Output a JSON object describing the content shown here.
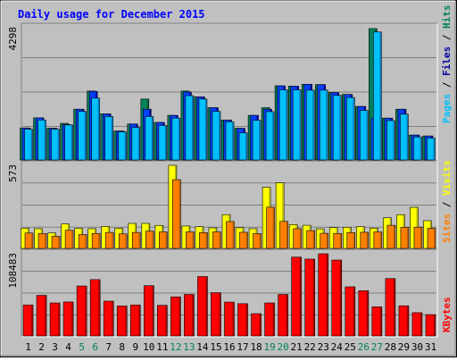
{
  "title": "Daily usage for December 2015",
  "colors": {
    "background": "#c0c0c0",
    "hits": "#006633",
    "hits_face": "#00805c",
    "files": "#0000a0",
    "files_face": "#0040ff",
    "pages": "#00c0ff",
    "pages_face": "#00e0ff",
    "visits": "#ffff00",
    "visits_face": "#ffff80",
    "sites": "#ff8000",
    "sites_face": "#ffa040",
    "kbytes": "#ff0000",
    "kbytes_face": "#ff4040",
    "title": "#0000ff",
    "weekend_label": "#00805c",
    "weekday_label": "#000000"
  },
  "legend_top": [
    "Pages",
    "Files",
    "Hits"
  ],
  "legend_mid": [
    "Sites",
    "Visits"
  ],
  "legend_bottom": [
    "KBytes"
  ],
  "chart_data": {
    "type": "bar",
    "categories": [
      "1",
      "2",
      "3",
      "4",
      "5",
      "6",
      "7",
      "8",
      "9",
      "10",
      "11",
      "12",
      "13",
      "14",
      "15",
      "16",
      "17",
      "18",
      "19",
      "20",
      "21",
      "22",
      "23",
      "24",
      "25",
      "26",
      "27",
      "28",
      "29",
      "30",
      "31"
    ],
    "weekend_days": [
      "5",
      "6",
      "12",
      "13",
      "19",
      "20",
      "26",
      "27"
    ],
    "panels": [
      {
        "name": "hits-files-pages",
        "ymax_label": "4298",
        "ymax": 4298,
        "series": [
          {
            "name": "Hits",
            "values": [
              1010,
              1340,
              1000,
              1160,
              1620,
              2210,
              1470,
              910,
              1140,
              1950,
              1190,
              1420,
              2210,
              2020,
              1670,
              1270,
              1000,
              1420,
              1670,
              2380,
              2370,
              2430,
              2420,
              2160,
              2100,
              1710,
              4240,
              1330,
              1620,
              780,
              750
            ]
          },
          {
            "name": "Files",
            "values": [
              1010,
              1340,
              1000,
              1120,
              1620,
              2200,
              1470,
              910,
              1140,
              1620,
              1190,
              1420,
              2180,
              2020,
              1670,
              1270,
              1000,
              1420,
              1620,
              2380,
              2370,
              2430,
              2420,
              2160,
              2100,
              1710,
              1330,
              1330,
              1620,
              780,
              750
            ]
          },
          {
            "name": "Pages",
            "values": [
              970,
              1270,
              970,
              1110,
              1550,
              1980,
              1380,
              880,
              1030,
              1380,
              1090,
              1330,
              2060,
              1950,
              1550,
              1210,
              850,
              1260,
              1540,
              2250,
              2250,
              2240,
              2240,
              2070,
              2000,
              1580,
              4130,
              1250,
              1460,
              720,
              680
            ]
          }
        ]
      },
      {
        "name": "visits-sites",
        "ymax_label": "573",
        "ymax": 573,
        "series": [
          {
            "name": "Visits",
            "values": [
              135,
              131,
              101,
              164,
              134,
              131,
              147,
              134,
              168,
              168,
              154,
              573,
              150,
              145,
              137,
              229,
              138,
              131,
              420,
              451,
              160,
              155,
              130,
              139,
              141,
              145,
              135,
              207,
              229,
              280,
              187
            ]
          },
          {
            "name": "Sites",
            "values": [
              101,
              98,
              78,
              120,
              90,
              98,
              105,
              95,
              105,
              114,
              109,
              473,
              109,
              104,
              109,
              181,
              106,
              97,
              281,
              182,
              131,
              118,
              99,
              98,
              104,
              106,
              109,
              155,
              141,
              142,
              134
            ]
          }
        ]
      },
      {
        "name": "kbytes",
        "ymax_label": "108483",
        "ymax": 108483,
        "series": [
          {
            "name": "KBytes",
            "values": [
              40200,
              53000,
              42900,
              44200,
              65500,
              74000,
              45300,
              38800,
              40200,
              66000,
              39700,
              51000,
              54200,
              78100,
              56500,
              44000,
              41900,
              28600,
              42900,
              54200,
              104000,
              101400,
              108483,
              100100,
              64400,
              59200,
              37700,
              75400,
              39100,
              29900,
              27300
            ]
          }
        ]
      }
    ]
  }
}
